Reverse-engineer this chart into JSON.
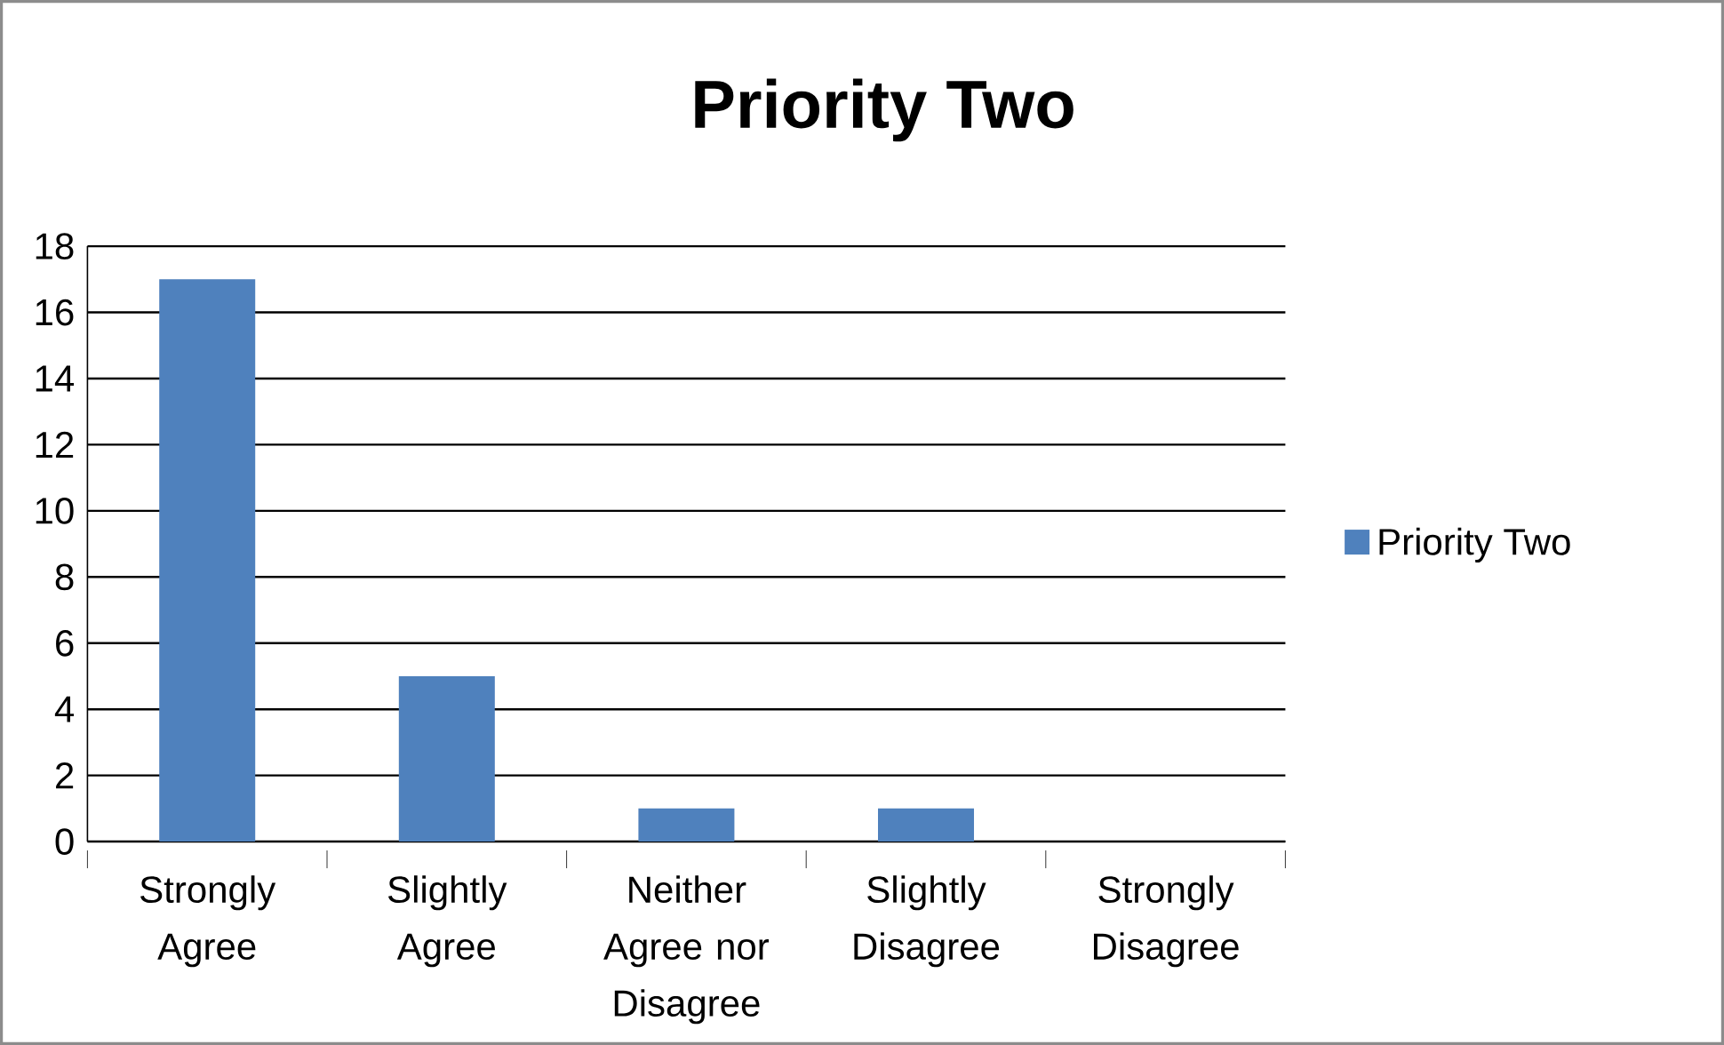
{
  "chart_data": {
    "type": "bar",
    "title": "Priority Two",
    "categories": [
      "Strongly Agree",
      "Slightly Agree",
      "Neither Agree nor Disagree",
      "Slightly Disagree",
      "Strongly Disagree"
    ],
    "series": [
      {
        "name": "Priority Two",
        "color": "#4f81bd",
        "values": [
          17,
          5,
          1,
          1,
          0
        ]
      }
    ],
    "ylim": [
      0,
      18
    ],
    "yticks": [
      0,
      2,
      4,
      6,
      8,
      10,
      12,
      14,
      16,
      18
    ],
    "grid": "y",
    "legend": "right"
  }
}
